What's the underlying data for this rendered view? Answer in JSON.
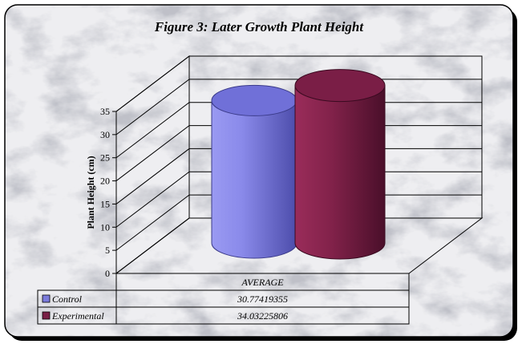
{
  "chart_data": {
    "type": "bar",
    "title": "Figure 3: Later Growth Plant Height",
    "ylabel": "Plant Height (cm)",
    "xlabel": "",
    "ylim": [
      0,
      35
    ],
    "yticks": [
      "0",
      "5",
      "10",
      "15",
      "20",
      "25",
      "30",
      "35"
    ],
    "categories": [
      "AVERAGE"
    ],
    "series": [
      {
        "name": "Control",
        "values": [
          30.77419355
        ],
        "value_label": "30.77419355",
        "color": "#7b7bdc"
      },
      {
        "name": "Experimental",
        "values": [
          34.03225806
        ],
        "value_label": "34.03225806",
        "color": "#7a1f46"
      }
    ],
    "legend": "data-table",
    "grid": true,
    "style": "3d-cylinder",
    "background": "marble"
  }
}
